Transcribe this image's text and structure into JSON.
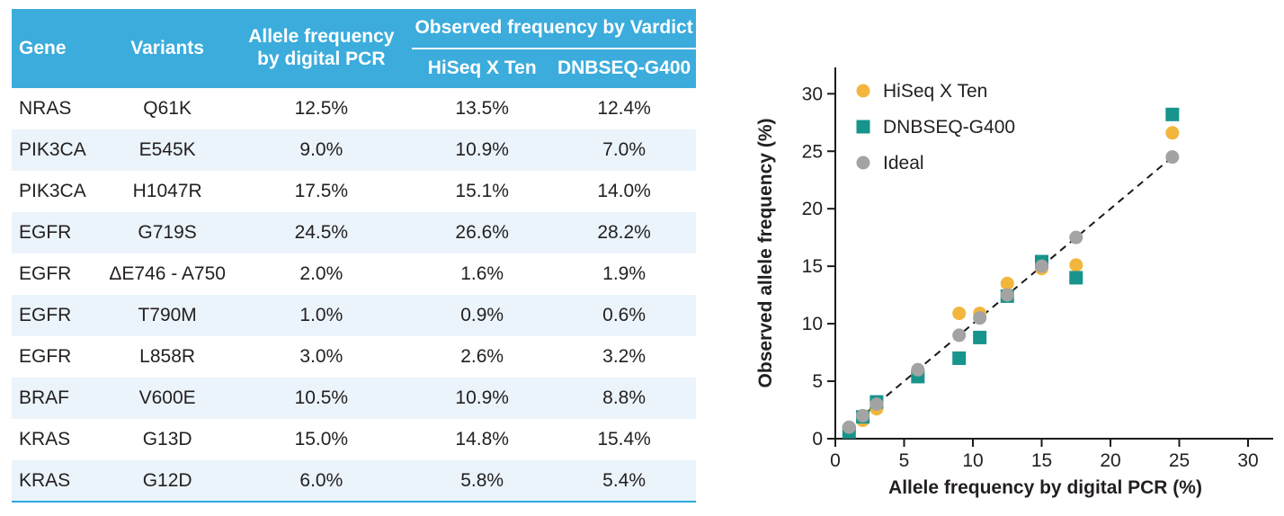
{
  "table": {
    "headers": {
      "gene": "Gene",
      "variants": "Variants",
      "pcr": "Allele frequency by digital PCR",
      "group": "Observed frequency by Vardict",
      "hiseq": "HiSeq X Ten",
      "dnbseq": "DNBSEQ-G400"
    },
    "rows": [
      [
        "NRAS",
        "Q61K",
        "12.5%",
        "13.5%",
        "12.4%"
      ],
      [
        "PIK3CA",
        "E545K",
        "9.0%",
        "10.9%",
        "7.0%"
      ],
      [
        "PIK3CA",
        "H1047R",
        "17.5%",
        "15.1%",
        "14.0%"
      ],
      [
        "EGFR",
        "G719S",
        "24.5%",
        "26.6%",
        "28.2%"
      ],
      [
        "EGFR",
        "ΔE746 - A750",
        "2.0%",
        "1.6%",
        "1.9%"
      ],
      [
        "EGFR",
        "T790M",
        "1.0%",
        "0.9%",
        "0.6%"
      ],
      [
        "EGFR",
        "L858R",
        "3.0%",
        "2.6%",
        "3.2%"
      ],
      [
        "BRAF",
        "V600E",
        "10.5%",
        "10.9%",
        "8.8%"
      ],
      [
        "KRAS",
        "G13D",
        "15.0%",
        "14.8%",
        "15.4%"
      ],
      [
        "KRAS",
        "G12D",
        "6.0%",
        "5.8%",
        "5.4%"
      ]
    ]
  },
  "chart_data": {
    "type": "scatter",
    "xlabel": "Allele frequency by digital PCR (%)",
    "ylabel": "Observed allele frequency (%)",
    "xlim": [
      0,
      32
    ],
    "ylim": [
      0,
      32
    ],
    "xticks": [
      0,
      5,
      10,
      15,
      20,
      25,
      30
    ],
    "yticks": [
      0,
      5,
      10,
      15,
      20,
      25,
      30
    ],
    "grid": false,
    "legend_position": "upper-left",
    "series": [
      {
        "name": "HiSeq X Ten",
        "marker": "circle",
        "color": "#F2B63D",
        "x": [
          12.5,
          9,
          17.5,
          24.5,
          2,
          1,
          3,
          10.5,
          15,
          6
        ],
        "y": [
          13.5,
          10.9,
          15.1,
          26.6,
          1.6,
          0.9,
          2.6,
          10.9,
          14.8,
          5.8
        ]
      },
      {
        "name": "DNBSEQ-G400",
        "marker": "square",
        "color": "#17948C",
        "x": [
          12.5,
          9,
          17.5,
          24.5,
          2,
          1,
          3,
          10.5,
          15,
          6
        ],
        "y": [
          12.4,
          7.0,
          14.0,
          28.2,
          1.9,
          0.6,
          3.2,
          8.8,
          15.4,
          5.4
        ]
      },
      {
        "name": "Ideal",
        "marker": "circle",
        "color": "#A3A3A3",
        "x": [
          12.5,
          9,
          17.5,
          24.5,
          2,
          1,
          3,
          10.5,
          15,
          6
        ],
        "y": [
          12.5,
          9,
          17.5,
          24.5,
          2,
          1,
          3,
          10.5,
          15,
          6
        ]
      }
    ],
    "identity_line": {
      "style": "dashed",
      "from_xy": 0.9,
      "to_xy": 24.5
    }
  },
  "colors": {
    "header_blue": "#3BACDC",
    "stripe_blue": "#EBF4FB",
    "border_blue": "#2BAADF",
    "ink": "#231F20",
    "hiseq": "#F2B63D",
    "dnbseq": "#17948C",
    "ideal": "#A3A3A3"
  }
}
